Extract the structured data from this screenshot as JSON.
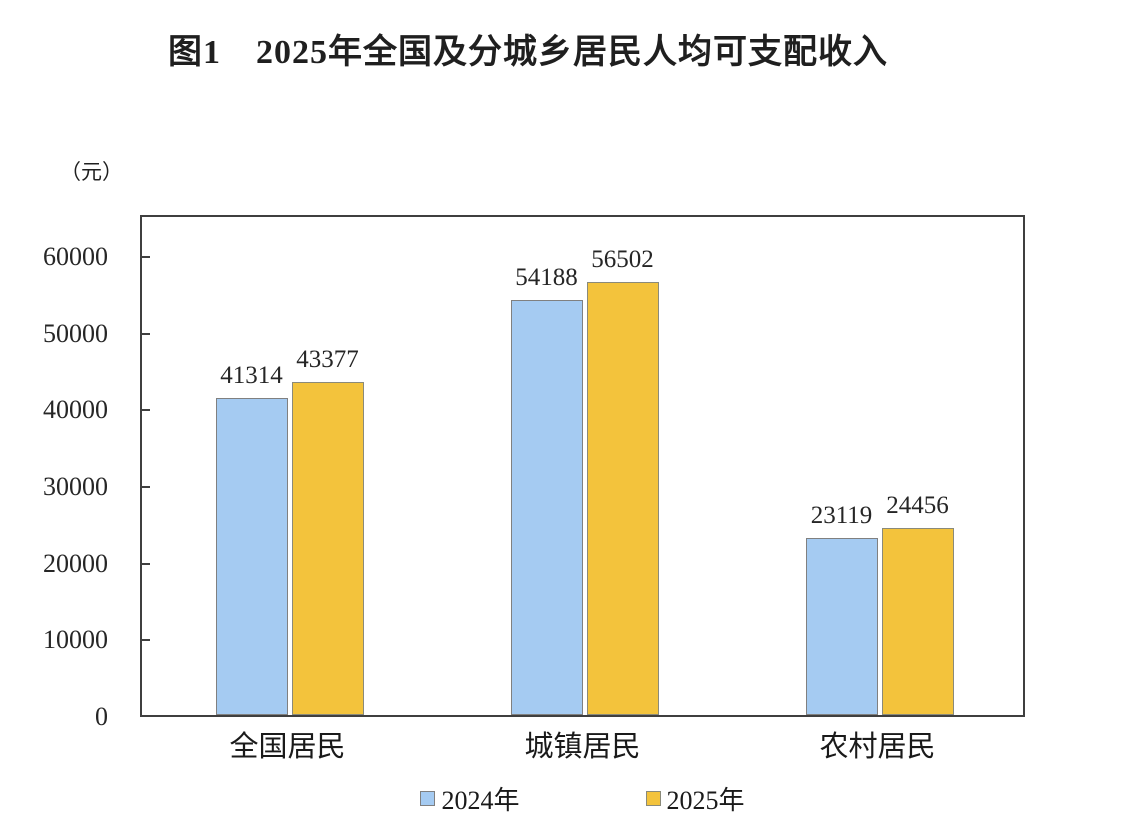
{
  "chart_data": {
    "type": "bar",
    "title": "图1　2025年全国及分城乡居民人均可支配收入",
    "unit": "（元）",
    "categories": [
      "全国居民",
      "城镇居民",
      "农村居民"
    ],
    "category_slugs": [
      "national",
      "urban",
      "rural"
    ],
    "series": [
      {
        "name": "2024年",
        "slug": "2024",
        "color": "#A5CBF2",
        "border_color": "#808080",
        "values": [
          41314,
          54188,
          23119
        ]
      },
      {
        "name": "2025年",
        "slug": "2025",
        "color": "#F3C33C",
        "border_color": "#8A8A7A",
        "values": [
          43377,
          56502,
          24456
        ]
      }
    ],
    "yticks": [
      0,
      10000,
      20000,
      30000,
      40000,
      50000,
      60000
    ],
    "ylim": [
      0,
      65500
    ],
    "grid": false,
    "legend_position": "bottom",
    "data_labels": true,
    "axis_color": "#3F3F3F",
    "text_color": "#1F1F1F"
  }
}
